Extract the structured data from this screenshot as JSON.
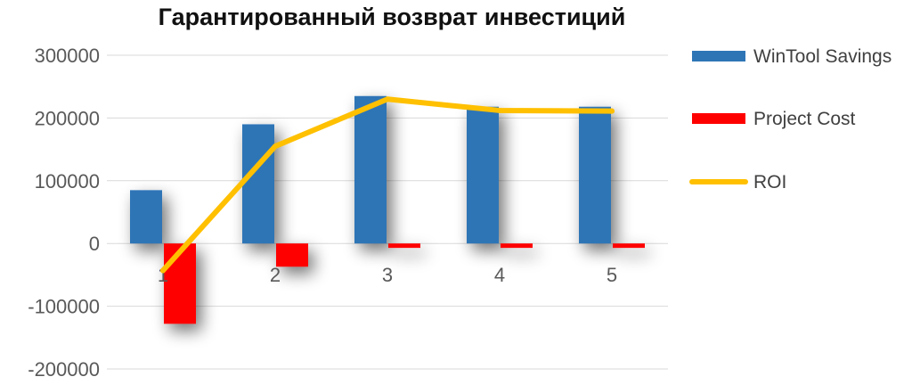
{
  "chart_data": {
    "type": "bar",
    "title": "Гарантированный возврат инвестиций",
    "categories": [
      "1",
      "2",
      "3",
      "4",
      "5"
    ],
    "ylim": [
      -200000,
      300000
    ],
    "yticks": [
      "300000",
      "200000",
      "100000",
      "0",
      "-100000",
      "-200000"
    ],
    "ytick_values": [
      300000,
      200000,
      100000,
      0,
      -100000,
      -200000
    ],
    "grid": true,
    "legend_position": "right",
    "series": [
      {
        "name": "WinTool Savings",
        "type": "bar",
        "color": "#2e75b6",
        "values": [
          85000,
          190000,
          235000,
          218000,
          218000
        ]
      },
      {
        "name": "Project Cost",
        "type": "bar",
        "color": "#ff0000",
        "values": [
          -128000,
          -37000,
          -7000,
          -7000,
          -7000
        ]
      },
      {
        "name": "ROI",
        "type": "line",
        "color": "#ffc000",
        "values": [
          -43000,
          155000,
          230000,
          212000,
          211000
        ]
      }
    ]
  }
}
